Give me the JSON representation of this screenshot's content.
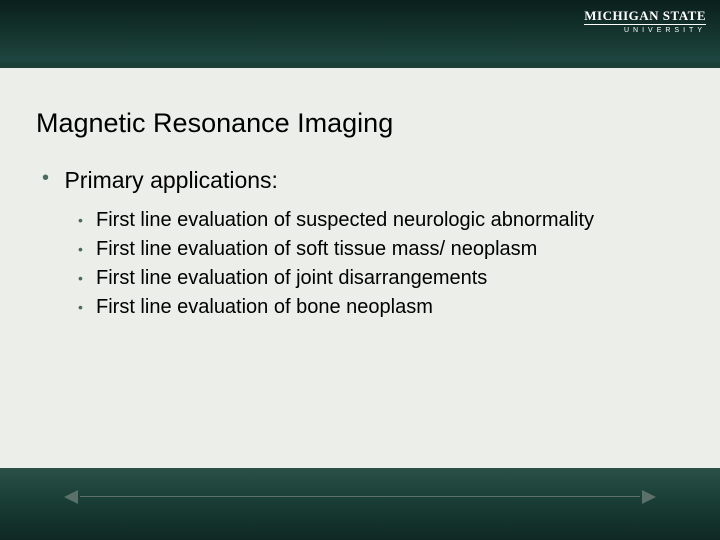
{
  "slide": {
    "background_content": "#eceee9",
    "background_bands": "#1a4038",
    "header_line_color": "#000000",
    "bullet_color": "#4a6b5f",
    "text_color": "#000000",
    "nav_color": "#5a7068",
    "title_fontsize": 27,
    "level1_fontsize": 23,
    "level2_fontsize": 20
  },
  "logo": {
    "main": "MICHIGAN STATE",
    "sub": "UNIVERSITY"
  },
  "title": "Magnetic Resonance Imaging",
  "level1": {
    "text": "Primary applications:"
  },
  "subitems": [
    "First line evaluation of suspected neurologic abnormality",
    "First line evaluation of soft tissue mass/ neoplasm",
    "First line evaluation of joint disarrangements",
    "First line evaluation of bone neoplasm"
  ]
}
